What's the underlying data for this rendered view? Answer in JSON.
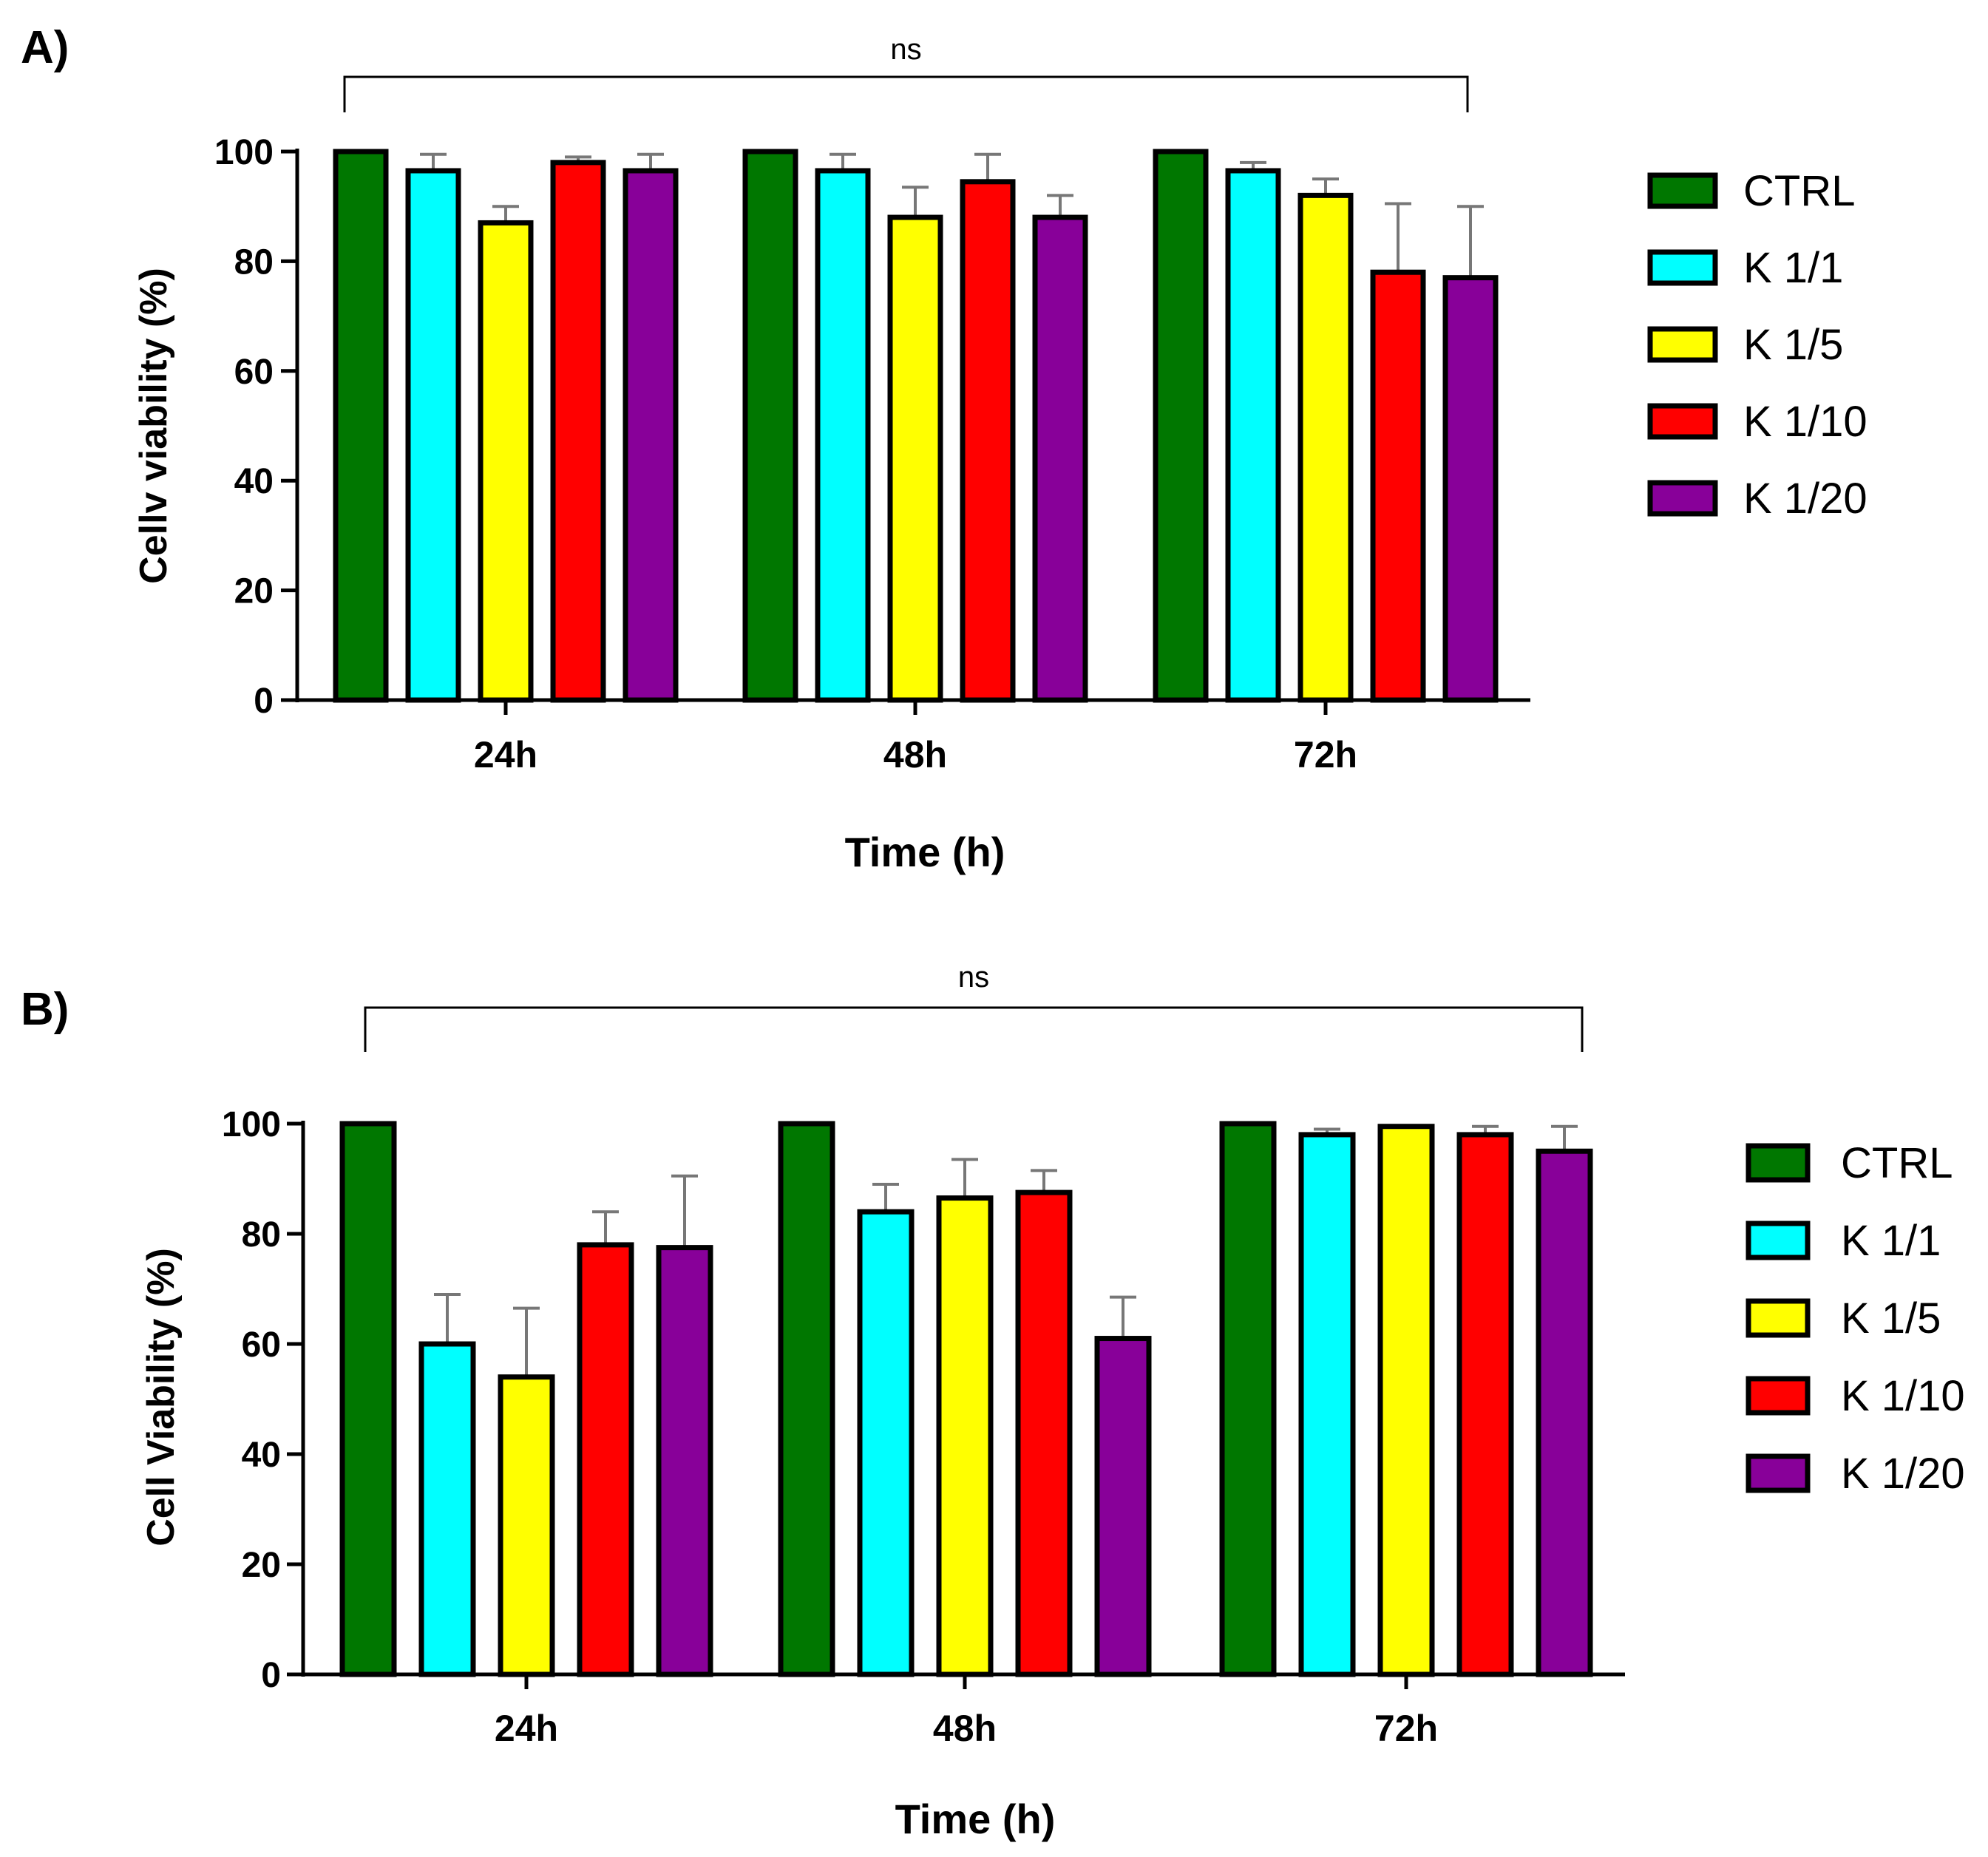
{
  "chart_data": [
    {
      "panel_label": "A)",
      "type": "bar",
      "xlabel": "Time (h)",
      "ylabel": "Cellv viability (%)",
      "ylim": [
        0,
        100
      ],
      "yticks": [
        0,
        20,
        40,
        60,
        80,
        100
      ],
      "categories": [
        "24h",
        "48h",
        "72h"
      ],
      "significance": "ns",
      "legend_position": "right",
      "series": [
        {
          "name": "CTRL",
          "color": "#007700",
          "values": [
            100,
            100,
            100
          ],
          "errors": [
            0,
            0,
            0
          ]
        },
        {
          "name": "K 1/1",
          "color": "#00FFFF",
          "values": [
            96.5,
            96.5,
            96.5
          ],
          "errors": [
            3,
            3,
            1.5
          ]
        },
        {
          "name": "K 1/5",
          "color": "#FFFF00",
          "values": [
            87,
            88,
            92
          ],
          "errors": [
            3,
            5.5,
            3
          ]
        },
        {
          "name": "K 1/10",
          "color": "#FF0000",
          "values": [
            98,
            94.5,
            78
          ],
          "errors": [
            1,
            5,
            12.5
          ]
        },
        {
          "name": "K 1/20",
          "color": "#880099",
          "values": [
            96.5,
            88,
            77
          ],
          "errors": [
            3,
            4,
            13
          ]
        }
      ]
    },
    {
      "panel_label": "B)",
      "type": "bar",
      "xlabel": "Time (h)",
      "ylabel": "Cell Viability (%)",
      "ylim": [
        0,
        100
      ],
      "yticks": [
        0,
        20,
        40,
        60,
        80,
        100
      ],
      "categories": [
        "24h",
        "48h",
        "72h"
      ],
      "significance": "ns",
      "legend_position": "right",
      "series": [
        {
          "name": "CTRL",
          "color": "#007700",
          "values": [
            100,
            100,
            100
          ],
          "errors": [
            0,
            0,
            0
          ]
        },
        {
          "name": "K 1/1",
          "color": "#00FFFF",
          "values": [
            60,
            84,
            98
          ],
          "errors": [
            9,
            5,
            1
          ]
        },
        {
          "name": "K 1/5",
          "color": "#FFFF00",
          "values": [
            54,
            86.5,
            99.5
          ],
          "errors": [
            12.5,
            7,
            0
          ]
        },
        {
          "name": "K 1/10",
          "color": "#FF0000",
          "values": [
            78,
            87.5,
            98
          ],
          "errors": [
            6,
            4,
            1.5
          ]
        },
        {
          "name": "K 1/20",
          "color": "#880099",
          "values": [
            77.5,
            61,
            95
          ],
          "errors": [
            13,
            7.5,
            4.5
          ]
        }
      ]
    }
  ]
}
